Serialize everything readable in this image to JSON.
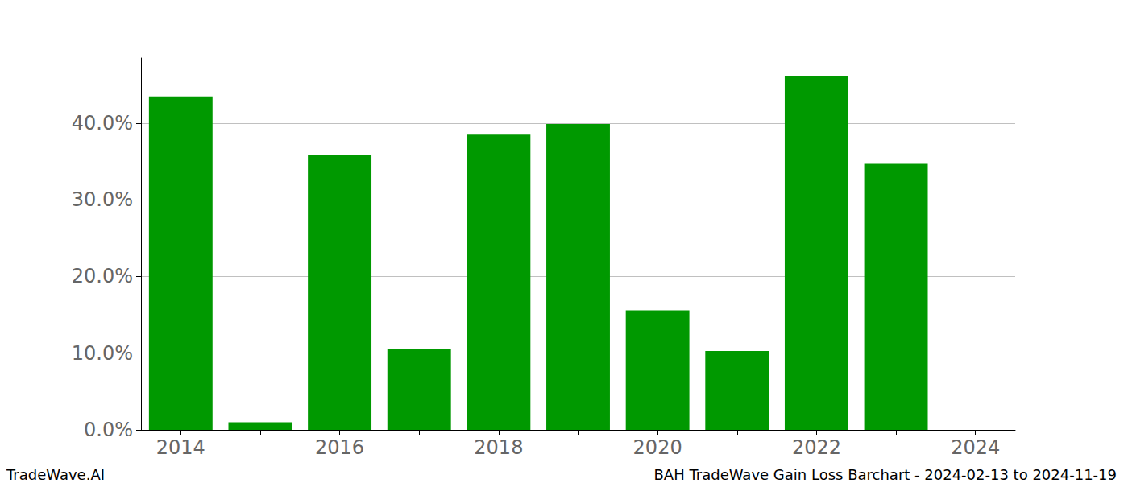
{
  "chart_data": {
    "type": "bar",
    "title": "BAH TradeWave Gain Loss Barchart - 2024-02-13 to 2024-11-19",
    "annotations": [
      "TradeWave.AI"
    ],
    "categories": [
      "2014",
      null,
      "2016",
      null,
      "2018",
      null,
      "2020",
      null,
      "2022",
      null,
      "2024"
    ],
    "values": [
      43.5,
      1.0,
      35.8,
      10.5,
      38.5,
      39.9,
      15.6,
      10.3,
      46.2,
      34.7,
      null
    ],
    "color": "#009900",
    "ylim": [
      0,
      48.5
    ],
    "yticks": [
      {
        "value": 0,
        "label": "0.0%"
      },
      {
        "value": 10,
        "label": "10.0%"
      },
      {
        "value": 20,
        "label": "20.0%"
      },
      {
        "value": 30,
        "label": "30.0%"
      },
      {
        "value": 40,
        "label": "40.0%"
      }
    ],
    "grid": true
  }
}
